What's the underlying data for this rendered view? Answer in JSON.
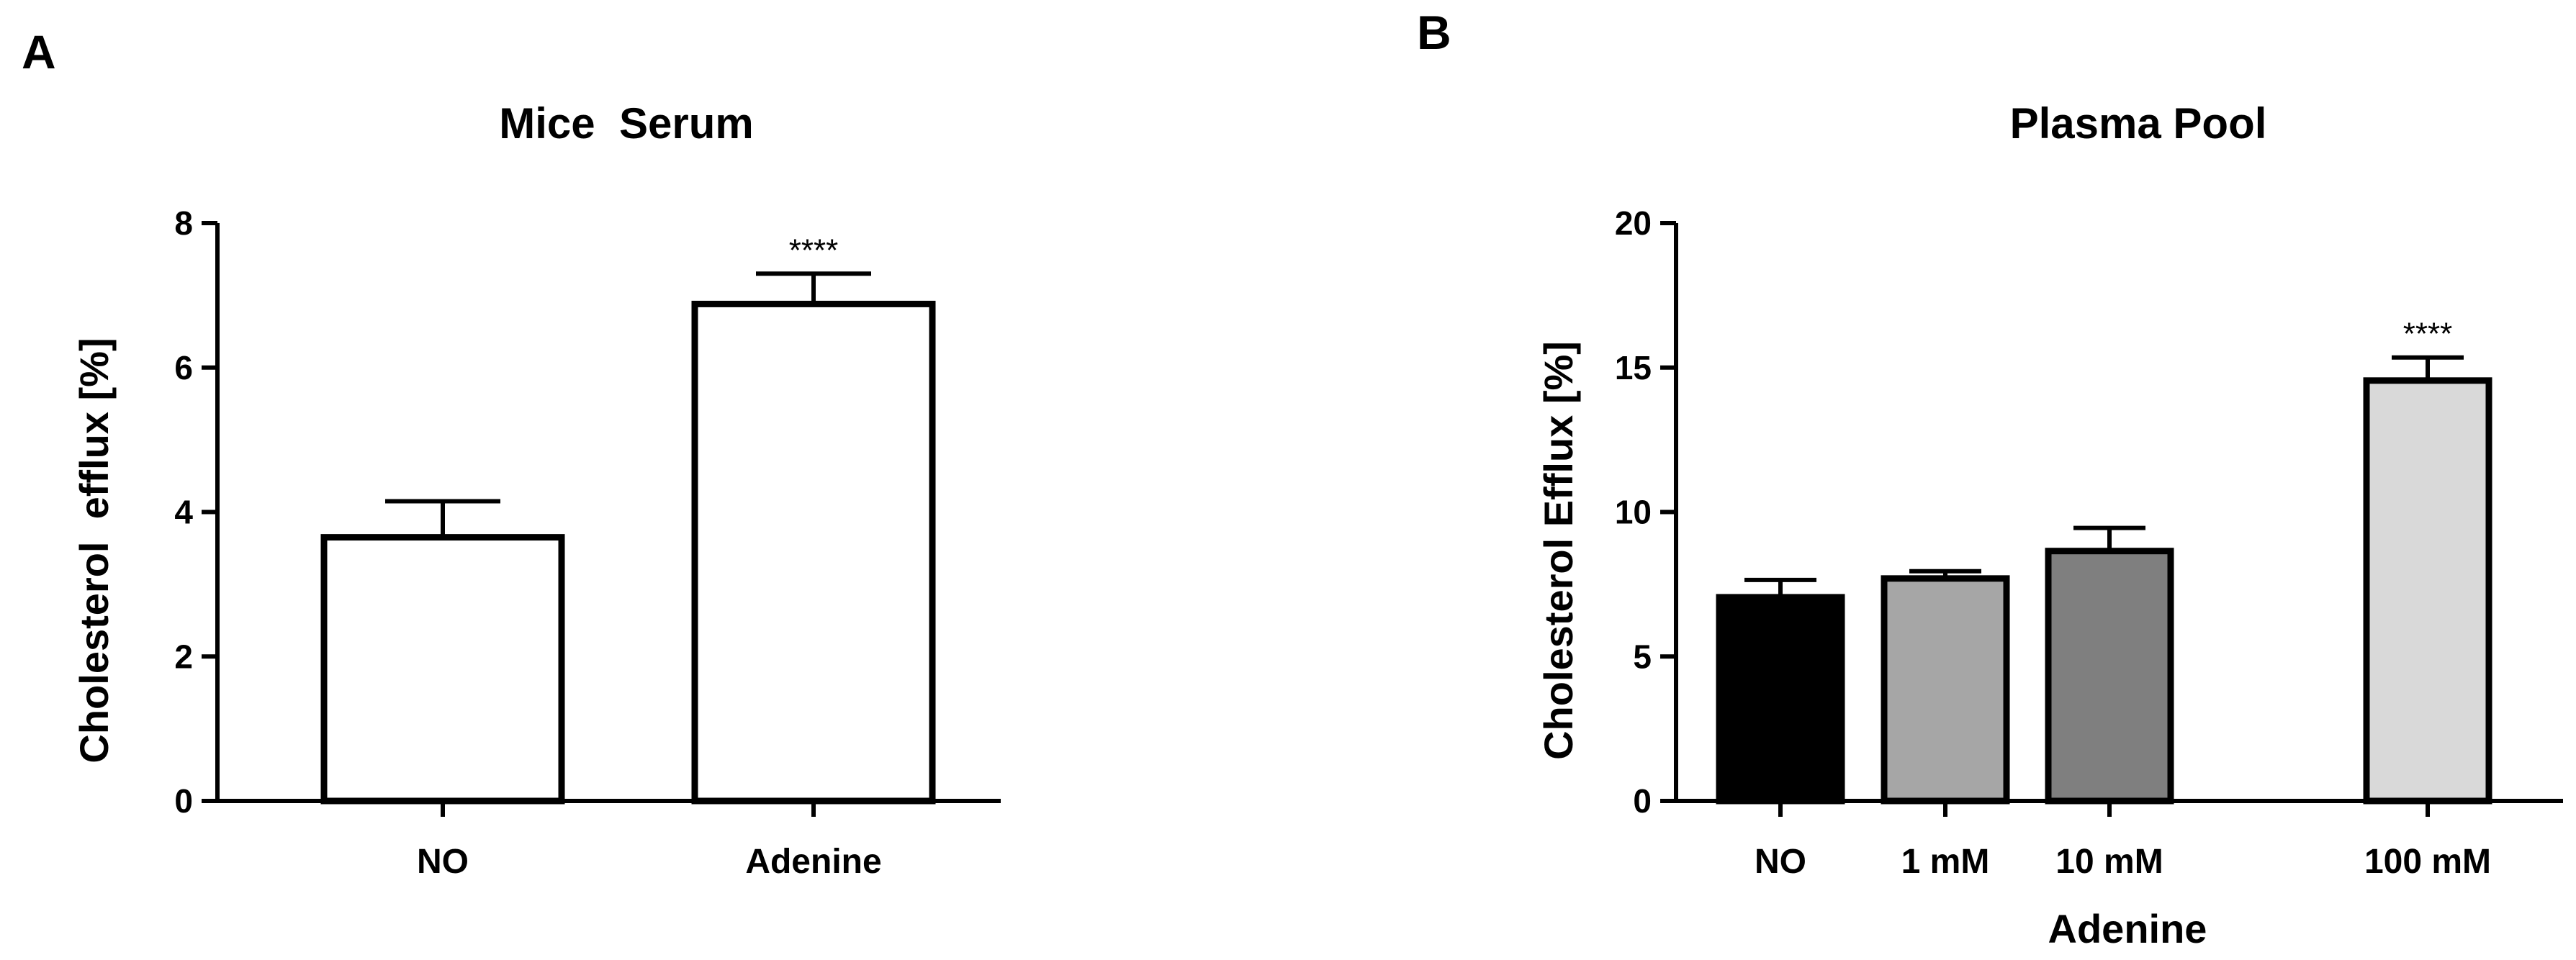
{
  "panels": [
    {
      "letter": "A"
    },
    {
      "letter": "B"
    }
  ],
  "chart_data": [
    {
      "type": "bar",
      "title": "Mice  Serum",
      "xlabel": "",
      "ylabel": "Cholesterol  efflux [%]",
      "ylim": [
        0,
        8
      ],
      "yticks": [
        0,
        2,
        4,
        6,
        8
      ],
      "categories": [
        "NO",
        "Adenine"
      ],
      "values": [
        3.65,
        6.88
      ],
      "errors": [
        0.5,
        0.42
      ],
      "significance": [
        "",
        "****"
      ],
      "colors": [
        "#ffffff",
        "#ffffff"
      ]
    },
    {
      "type": "bar",
      "title": "Plasma Pool",
      "xlabel": "Adenine",
      "ylabel": "Cholesterol Efflux [%]",
      "ylim": [
        0,
        20
      ],
      "yticks": [
        0,
        5,
        10,
        15,
        20
      ],
      "categories": [
        "NO",
        "1 mM",
        "10 mM",
        "100 mM"
      ],
      "values": [
        7.05,
        7.7,
        8.65,
        14.55
      ],
      "errors": [
        0.6,
        0.25,
        0.8,
        0.8
      ],
      "significance": [
        "",
        "",
        "",
        "****"
      ],
      "colors": [
        "#000000",
        "#a6a6a6",
        "#7f7f7f",
        "#d9d9d9"
      ]
    }
  ]
}
